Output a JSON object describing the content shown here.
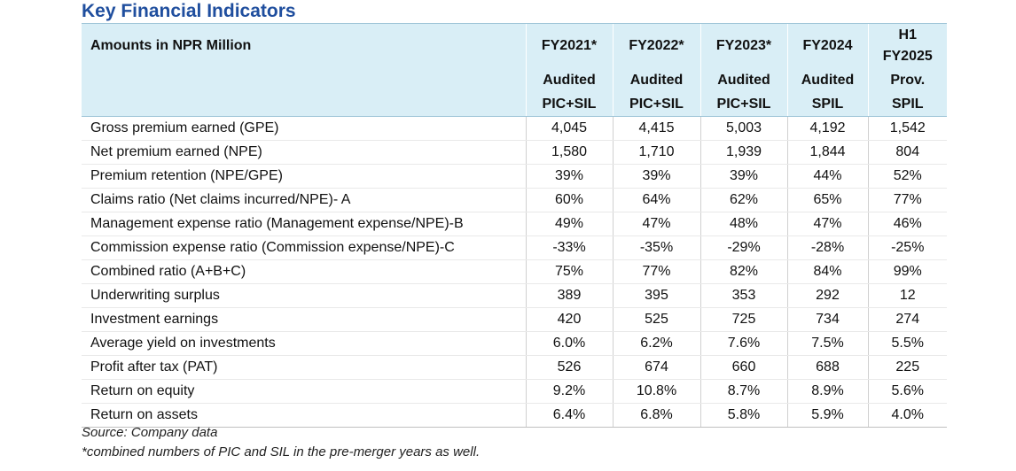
{
  "title": "Key Financial Indicators",
  "header": {
    "label": "Amounts in NPR Million",
    "years": [
      "FY2021*",
      "FY2022*",
      "FY2023*",
      "FY2024",
      "H1 FY2025"
    ],
    "status": [
      "Audited",
      "Audited",
      "Audited",
      "Audited",
      "Prov."
    ],
    "entities": [
      "PIC+SIL",
      "PIC+SIL",
      "PIC+SIL",
      "SPIL",
      "SPIL"
    ]
  },
  "rows": [
    {
      "label": "Gross premium earned (GPE)",
      "values": [
        "4,045",
        "4,415",
        "5,003",
        "4,192",
        "1,542"
      ]
    },
    {
      "label": "Net premium earned (NPE)",
      "values": [
        "1,580",
        "1,710",
        "1,939",
        "1,844",
        "804"
      ]
    },
    {
      "label": "Premium retention (NPE/GPE)",
      "values": [
        "39%",
        "39%",
        "39%",
        "44%",
        "52%"
      ]
    },
    {
      "label": "Claims ratio (Net claims incurred/NPE)- A",
      "values": [
        "60%",
        "64%",
        "62%",
        "65%",
        "77%"
      ]
    },
    {
      "label": "Management expense ratio (Management expense/NPE)-B",
      "values": [
        "49%",
        "47%",
        "48%",
        "47%",
        "46%"
      ]
    },
    {
      "label": "Commission expense ratio (Commission expense/NPE)-C",
      "values": [
        "-33%",
        "-35%",
        "-29%",
        "-28%",
        "-25%"
      ]
    },
    {
      "label": "Combined ratio (A+B+C)",
      "values": [
        "75%",
        "77%",
        "82%",
        "84%",
        "99%"
      ]
    },
    {
      "label": "Underwriting surplus",
      "values": [
        "389",
        "395",
        "353",
        "292",
        "12"
      ]
    },
    {
      "label": "Investment earnings",
      "values": [
        "420",
        "525",
        "725",
        "734",
        "274"
      ]
    },
    {
      "label": "Average yield on investments",
      "values": [
        "6.0%",
        "6.2%",
        "7.6%",
        "7.5%",
        "5.5%"
      ]
    },
    {
      "label": "Profit after tax (PAT)",
      "values": [
        "526",
        "674",
        "660",
        "688",
        "225"
      ]
    },
    {
      "label": "Return on equity",
      "values": [
        "9.2%",
        "10.8%",
        "8.7%",
        "8.9%",
        "5.6%"
      ]
    },
    {
      "label": "Return on assets",
      "values": [
        "6.4%",
        "6.8%",
        "5.8%",
        "5.9%",
        "4.0%"
      ]
    }
  ],
  "source": "Source: Company data",
  "footnote": "*combined numbers of PIC and SIL in the pre-merger years as well."
}
